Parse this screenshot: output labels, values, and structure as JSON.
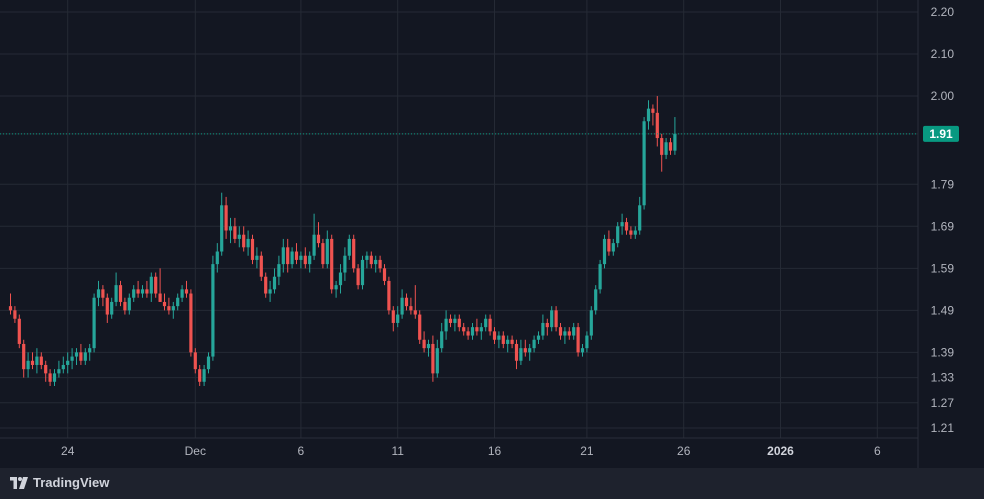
{
  "brand": {
    "name": "TradingView",
    "logo_icon": "tradingview-logo-icon"
  },
  "colors": {
    "up": "#26a69a",
    "down": "#ef5350",
    "background": "#131722",
    "grid": "#252a35",
    "label_bg": "#089981"
  },
  "chart_data": {
    "type": "candlestick",
    "title": "",
    "xlabel": "",
    "ylabel": "",
    "ylim": [
      1.18,
      2.22
    ],
    "last_price": "1.91",
    "y_ticks": [
      "2.20",
      "2.10",
      "2.00",
      "1.91",
      "1.79",
      "1.69",
      "1.59",
      "1.49",
      "1.39",
      "1.33",
      "1.27",
      "1.21"
    ],
    "x_ticks": [
      {
        "label": "24",
        "index": 13,
        "bold": false
      },
      {
        "label": "Dec",
        "index": 42,
        "bold": false
      },
      {
        "label": "6",
        "index": 66,
        "bold": false
      },
      {
        "label": "11",
        "index": 88,
        "bold": false
      },
      {
        "label": "16",
        "index": 110,
        "bold": false
      },
      {
        "label": "21",
        "index": 131,
        "bold": false
      },
      {
        "label": "26",
        "index": 153,
        "bold": false
      },
      {
        "label": "2026",
        "index": 175,
        "bold": true
      },
      {
        "label": "6",
        "index": 197,
        "bold": false
      }
    ],
    "grid": true,
    "candles": [
      [
        1.5,
        1.53,
        1.48,
        1.49
      ],
      [
        1.49,
        1.5,
        1.46,
        1.47
      ],
      [
        1.47,
        1.48,
        1.4,
        1.41
      ],
      [
        1.41,
        1.42,
        1.33,
        1.35
      ],
      [
        1.35,
        1.39,
        1.33,
        1.37
      ],
      [
        1.37,
        1.39,
        1.35,
        1.36
      ],
      [
        1.36,
        1.4,
        1.34,
        1.38
      ],
      [
        1.38,
        1.39,
        1.35,
        1.36
      ],
      [
        1.36,
        1.37,
        1.32,
        1.34
      ],
      [
        1.34,
        1.35,
        1.31,
        1.32
      ],
      [
        1.32,
        1.35,
        1.31,
        1.34
      ],
      [
        1.34,
        1.37,
        1.33,
        1.35
      ],
      [
        1.35,
        1.38,
        1.34,
        1.36
      ],
      [
        1.36,
        1.39,
        1.34,
        1.37
      ],
      [
        1.37,
        1.4,
        1.35,
        1.38
      ],
      [
        1.38,
        1.4,
        1.36,
        1.39
      ],
      [
        1.39,
        1.41,
        1.36,
        1.37
      ],
      [
        1.37,
        1.4,
        1.36,
        1.39
      ],
      [
        1.39,
        1.41,
        1.37,
        1.4
      ],
      [
        1.4,
        1.53,
        1.39,
        1.52
      ],
      [
        1.52,
        1.56,
        1.5,
        1.54
      ],
      [
        1.54,
        1.55,
        1.5,
        1.52
      ],
      [
        1.52,
        1.53,
        1.46,
        1.48
      ],
      [
        1.48,
        1.52,
        1.47,
        1.51
      ],
      [
        1.51,
        1.58,
        1.5,
        1.55
      ],
      [
        1.55,
        1.56,
        1.5,
        1.51
      ],
      [
        1.51,
        1.52,
        1.48,
        1.49
      ],
      [
        1.49,
        1.53,
        1.48,
        1.52
      ],
      [
        1.52,
        1.55,
        1.51,
        1.54
      ],
      [
        1.54,
        1.56,
        1.52,
        1.53
      ],
      [
        1.53,
        1.55,
        1.52,
        1.54
      ],
      [
        1.54,
        1.56,
        1.52,
        1.53
      ],
      [
        1.53,
        1.58,
        1.51,
        1.57
      ],
      [
        1.57,
        1.58,
        1.52,
        1.53
      ],
      [
        1.53,
        1.59,
        1.51,
        1.51
      ],
      [
        1.51,
        1.53,
        1.49,
        1.5
      ],
      [
        1.5,
        1.52,
        1.48,
        1.49
      ],
      [
        1.49,
        1.51,
        1.47,
        1.5
      ],
      [
        1.5,
        1.53,
        1.49,
        1.52
      ],
      [
        1.52,
        1.55,
        1.51,
        1.54
      ],
      [
        1.54,
        1.56,
        1.52,
        1.53
      ],
      [
        1.53,
        1.54,
        1.38,
        1.39
      ],
      [
        1.39,
        1.4,
        1.34,
        1.35
      ],
      [
        1.35,
        1.36,
        1.31,
        1.32
      ],
      [
        1.32,
        1.36,
        1.31,
        1.35
      ],
      [
        1.35,
        1.39,
        1.34,
        1.38
      ],
      [
        1.38,
        1.62,
        1.37,
        1.6
      ],
      [
        1.6,
        1.65,
        1.58,
        1.63
      ],
      [
        1.63,
        1.77,
        1.62,
        1.74
      ],
      [
        1.74,
        1.76,
        1.66,
        1.68
      ],
      [
        1.68,
        1.71,
        1.65,
        1.69
      ],
      [
        1.69,
        1.71,
        1.65,
        1.66
      ],
      [
        1.66,
        1.69,
        1.64,
        1.67
      ],
      [
        1.67,
        1.69,
        1.63,
        1.64
      ],
      [
        1.64,
        1.68,
        1.62,
        1.66
      ],
      [
        1.66,
        1.67,
        1.6,
        1.61
      ],
      [
        1.61,
        1.64,
        1.59,
        1.62
      ],
      [
        1.62,
        1.63,
        1.56,
        1.57
      ],
      [
        1.57,
        1.58,
        1.52,
        1.53
      ],
      [
        1.53,
        1.56,
        1.51,
        1.54
      ],
      [
        1.54,
        1.59,
        1.53,
        1.57
      ],
      [
        1.57,
        1.62,
        1.55,
        1.6
      ],
      [
        1.6,
        1.66,
        1.58,
        1.64
      ],
      [
        1.64,
        1.66,
        1.58,
        1.6
      ],
      [
        1.6,
        1.64,
        1.59,
        1.63
      ],
      [
        1.63,
        1.65,
        1.6,
        1.61
      ],
      [
        1.61,
        1.63,
        1.59,
        1.62
      ],
      [
        1.62,
        1.64,
        1.59,
        1.6
      ],
      [
        1.6,
        1.63,
        1.58,
        1.62
      ],
      [
        1.62,
        1.72,
        1.61,
        1.67
      ],
      [
        1.67,
        1.7,
        1.64,
        1.65
      ],
      [
        1.65,
        1.66,
        1.59,
        1.6
      ],
      [
        1.6,
        1.68,
        1.59,
        1.66
      ],
      [
        1.66,
        1.67,
        1.53,
        1.54
      ],
      [
        1.54,
        1.56,
        1.52,
        1.55
      ],
      [
        1.55,
        1.6,
        1.53,
        1.58
      ],
      [
        1.58,
        1.64,
        1.56,
        1.62
      ],
      [
        1.62,
        1.67,
        1.61,
        1.66
      ],
      [
        1.66,
        1.67,
        1.58,
        1.59
      ],
      [
        1.59,
        1.6,
        1.54,
        1.55
      ],
      [
        1.55,
        1.62,
        1.54,
        1.61
      ],
      [
        1.61,
        1.63,
        1.59,
        1.62
      ],
      [
        1.62,
        1.63,
        1.59,
        1.6
      ],
      [
        1.6,
        1.62,
        1.58,
        1.61
      ],
      [
        1.61,
        1.62,
        1.58,
        1.59
      ],
      [
        1.59,
        1.6,
        1.55,
        1.56
      ],
      [
        1.56,
        1.57,
        1.48,
        1.49
      ],
      [
        1.49,
        1.5,
        1.44,
        1.46
      ],
      [
        1.46,
        1.5,
        1.45,
        1.48
      ],
      [
        1.48,
        1.54,
        1.47,
        1.52
      ],
      [
        1.52,
        1.53,
        1.49,
        1.5
      ],
      [
        1.5,
        1.52,
        1.48,
        1.49
      ],
      [
        1.49,
        1.55,
        1.47,
        1.48
      ],
      [
        1.48,
        1.49,
        1.41,
        1.42
      ],
      [
        1.42,
        1.44,
        1.39,
        1.4
      ],
      [
        1.4,
        1.42,
        1.38,
        1.41
      ],
      [
        1.41,
        1.43,
        1.32,
        1.34
      ],
      [
        1.34,
        1.42,
        1.33,
        1.4
      ],
      [
        1.4,
        1.46,
        1.39,
        1.44
      ],
      [
        1.44,
        1.49,
        1.42,
        1.47
      ],
      [
        1.47,
        1.48,
        1.45,
        1.46
      ],
      [
        1.46,
        1.48,
        1.44,
        1.47
      ],
      [
        1.47,
        1.48,
        1.44,
        1.45
      ],
      [
        1.45,
        1.46,
        1.43,
        1.44
      ],
      [
        1.44,
        1.45,
        1.42,
        1.43
      ],
      [
        1.43,
        1.46,
        1.42,
        1.45
      ],
      [
        1.45,
        1.47,
        1.43,
        1.44
      ],
      [
        1.44,
        1.46,
        1.42,
        1.45
      ],
      [
        1.45,
        1.48,
        1.44,
        1.47
      ],
      [
        1.47,
        1.48,
        1.43,
        1.44
      ],
      [
        1.44,
        1.45,
        1.41,
        1.42
      ],
      [
        1.42,
        1.44,
        1.4,
        1.43
      ],
      [
        1.43,
        1.44,
        1.4,
        1.41
      ],
      [
        1.41,
        1.43,
        1.39,
        1.42
      ],
      [
        1.42,
        1.43,
        1.4,
        1.41
      ],
      [
        1.41,
        1.42,
        1.35,
        1.37
      ],
      [
        1.37,
        1.42,
        1.36,
        1.4
      ],
      [
        1.4,
        1.42,
        1.38,
        1.39
      ],
      [
        1.39,
        1.41,
        1.37,
        1.4
      ],
      [
        1.4,
        1.43,
        1.39,
        1.42
      ],
      [
        1.42,
        1.44,
        1.41,
        1.43
      ],
      [
        1.43,
        1.48,
        1.42,
        1.46
      ],
      [
        1.46,
        1.47,
        1.43,
        1.45
      ],
      [
        1.45,
        1.5,
        1.44,
        1.49
      ],
      [
        1.49,
        1.5,
        1.44,
        1.45
      ],
      [
        1.45,
        1.46,
        1.42,
        1.43
      ],
      [
        1.43,
        1.45,
        1.41,
        1.44
      ],
      [
        1.44,
        1.45,
        1.42,
        1.43
      ],
      [
        1.43,
        1.46,
        1.42,
        1.45
      ],
      [
        1.45,
        1.46,
        1.38,
        1.39
      ],
      [
        1.39,
        1.41,
        1.38,
        1.4
      ],
      [
        1.4,
        1.44,
        1.39,
        1.43
      ],
      [
        1.43,
        1.5,
        1.42,
        1.49
      ],
      [
        1.49,
        1.55,
        1.48,
        1.54
      ],
      [
        1.54,
        1.61,
        1.53,
        1.6
      ],
      [
        1.6,
        1.67,
        1.59,
        1.66
      ],
      [
        1.66,
        1.68,
        1.62,
        1.63
      ],
      [
        1.63,
        1.66,
        1.62,
        1.65
      ],
      [
        1.65,
        1.7,
        1.64,
        1.69
      ],
      [
        1.69,
        1.72,
        1.67,
        1.7
      ],
      [
        1.7,
        1.71,
        1.67,
        1.68
      ],
      [
        1.68,
        1.69,
        1.66,
        1.67
      ],
      [
        1.67,
        1.69,
        1.66,
        1.68
      ],
      [
        1.68,
        1.76,
        1.67,
        1.74
      ],
      [
        1.74,
        1.95,
        1.73,
        1.94
      ],
      [
        1.94,
        1.99,
        1.92,
        1.97
      ],
      [
        1.97,
        1.98,
        1.93,
        1.96
      ],
      [
        1.96,
        2.0,
        1.88,
        1.9
      ],
      [
        1.9,
        1.91,
        1.82,
        1.86
      ],
      [
        1.86,
        1.9,
        1.85,
        1.89
      ],
      [
        1.89,
        1.9,
        1.86,
        1.87
      ],
      [
        1.87,
        1.95,
        1.86,
        1.91
      ]
    ]
  }
}
